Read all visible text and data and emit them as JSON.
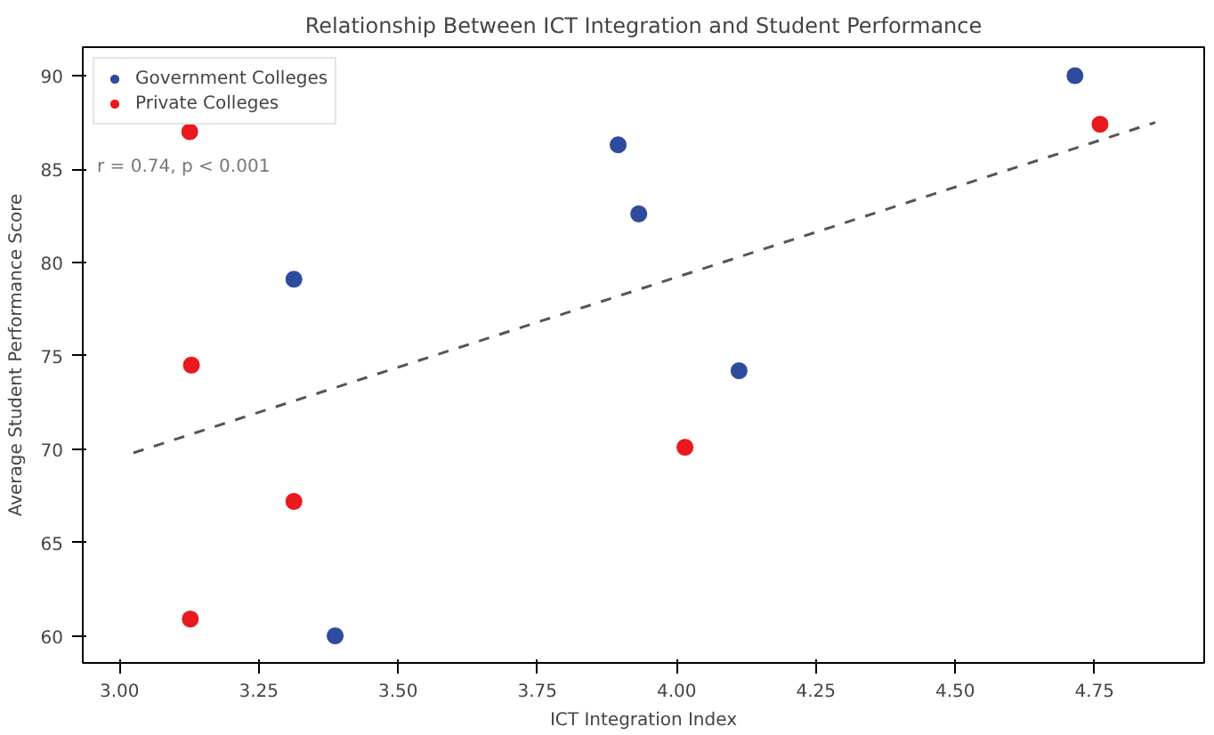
{
  "chart_data": {
    "type": "scatter",
    "title": "Relationship Between ICT Integration and Student Performance",
    "xlabel": "ICT Integration Index",
    "ylabel": "Average Student Performance Score",
    "series": [
      {
        "name": "Government Colleges",
        "color": "#2f4b9e",
        "x": [
          3.313,
          3.387,
          3.895,
          3.932,
          4.112,
          4.715
        ],
        "values": [
          79.1,
          60.0,
          86.3,
          82.6,
          74.2,
          90.0
        ]
      },
      {
        "name": "Private Colleges",
        "color": "#e8191f",
        "x": [
          3.126,
          3.129,
          3.127,
          3.313,
          4.015,
          4.76
        ],
        "values": [
          87.0,
          74.5,
          60.9,
          67.2,
          70.1,
          87.4
        ]
      },
      {
        "type": "line",
        "color": "#555555",
        "line_style": "dashed",
        "marker": "none",
        "x": [
          3.025,
          4.859
        ],
        "values": [
          69.8,
          87.5
        ]
      }
    ],
    "annotations": [
      "r = 0.74, p < 0.001"
    ],
    "xlim": [
      2.934,
      4.947
    ],
    "ylim": [
      58.55,
      91.53
    ],
    "xticks": [
      {
        "value": 3,
        "label": "3.00"
      },
      {
        "value": 3.25,
        "label": "3.25"
      },
      {
        "value": 3.5,
        "label": "3.50"
      },
      {
        "value": 3.75,
        "label": "3.75"
      },
      {
        "value": 4,
        "label": "4.00"
      },
      {
        "value": 4.25,
        "label": "4.25"
      },
      {
        "value": 4.5,
        "label": "4.50"
      },
      {
        "value": 4.75,
        "label": "4.75"
      }
    ],
    "yticks": [
      60,
      65,
      70,
      75,
      80,
      85,
      90
    ],
    "marker": "circle",
    "grid": false,
    "legend": "top left"
  }
}
